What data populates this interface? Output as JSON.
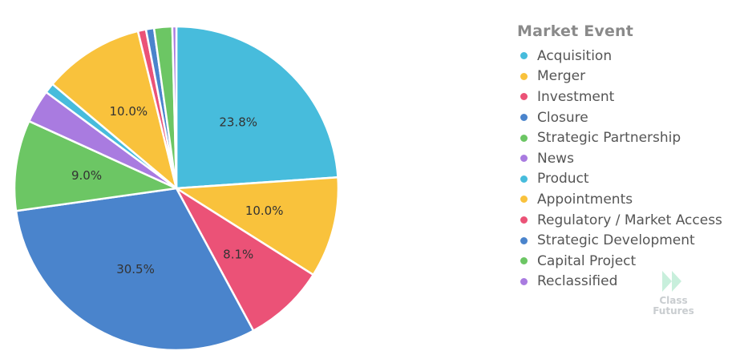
{
  "chart_data": {
    "type": "pie",
    "legend_title": "Market Event",
    "legend_position": "right",
    "slices": [
      {
        "label": "Acquisition",
        "value": 23.8,
        "color": "#47BCDC",
        "data_label": "23.8%"
      },
      {
        "label": "Merger",
        "value": 10.0,
        "color": "#F9C23C",
        "data_label": "10.0%"
      },
      {
        "label": "Investment",
        "value": 8.1,
        "color": "#EB5277",
        "data_label": "8.1%"
      },
      {
        "label": "Closure",
        "value": 30.5,
        "color": "#4A84CC",
        "data_label": "30.5%"
      },
      {
        "label": "Strategic Partnership",
        "value": 9.0,
        "color": "#6CC664",
        "data_label": "9.0%"
      },
      {
        "label": "News",
        "value": 3.3,
        "color": "#A97BE0",
        "data_label": ""
      },
      {
        "label": "Product",
        "value": 1.0,
        "color": "#47BCDC",
        "data_label": ""
      },
      {
        "label": "Appointments",
        "value": 10.0,
        "color": "#F9C23C",
        "data_label": "10.0%"
      },
      {
        "label": "Regulatory / Market Access",
        "value": 0.8,
        "color": "#EB5277",
        "data_label": ""
      },
      {
        "label": "Strategic Development",
        "value": 0.8,
        "color": "#4A84CC",
        "data_label": ""
      },
      {
        "label": "Capital Project",
        "value": 1.8,
        "color": "#6CC664",
        "data_label": ""
      },
      {
        "label": "Reclassified",
        "value": 0.4,
        "color": "#A97BE0",
        "data_label": ""
      }
    ]
  },
  "watermark": {
    "line1": "Class",
    "line2": "Futures",
    "icon": "double-chevron-icon",
    "color": "#c9cdd0"
  }
}
